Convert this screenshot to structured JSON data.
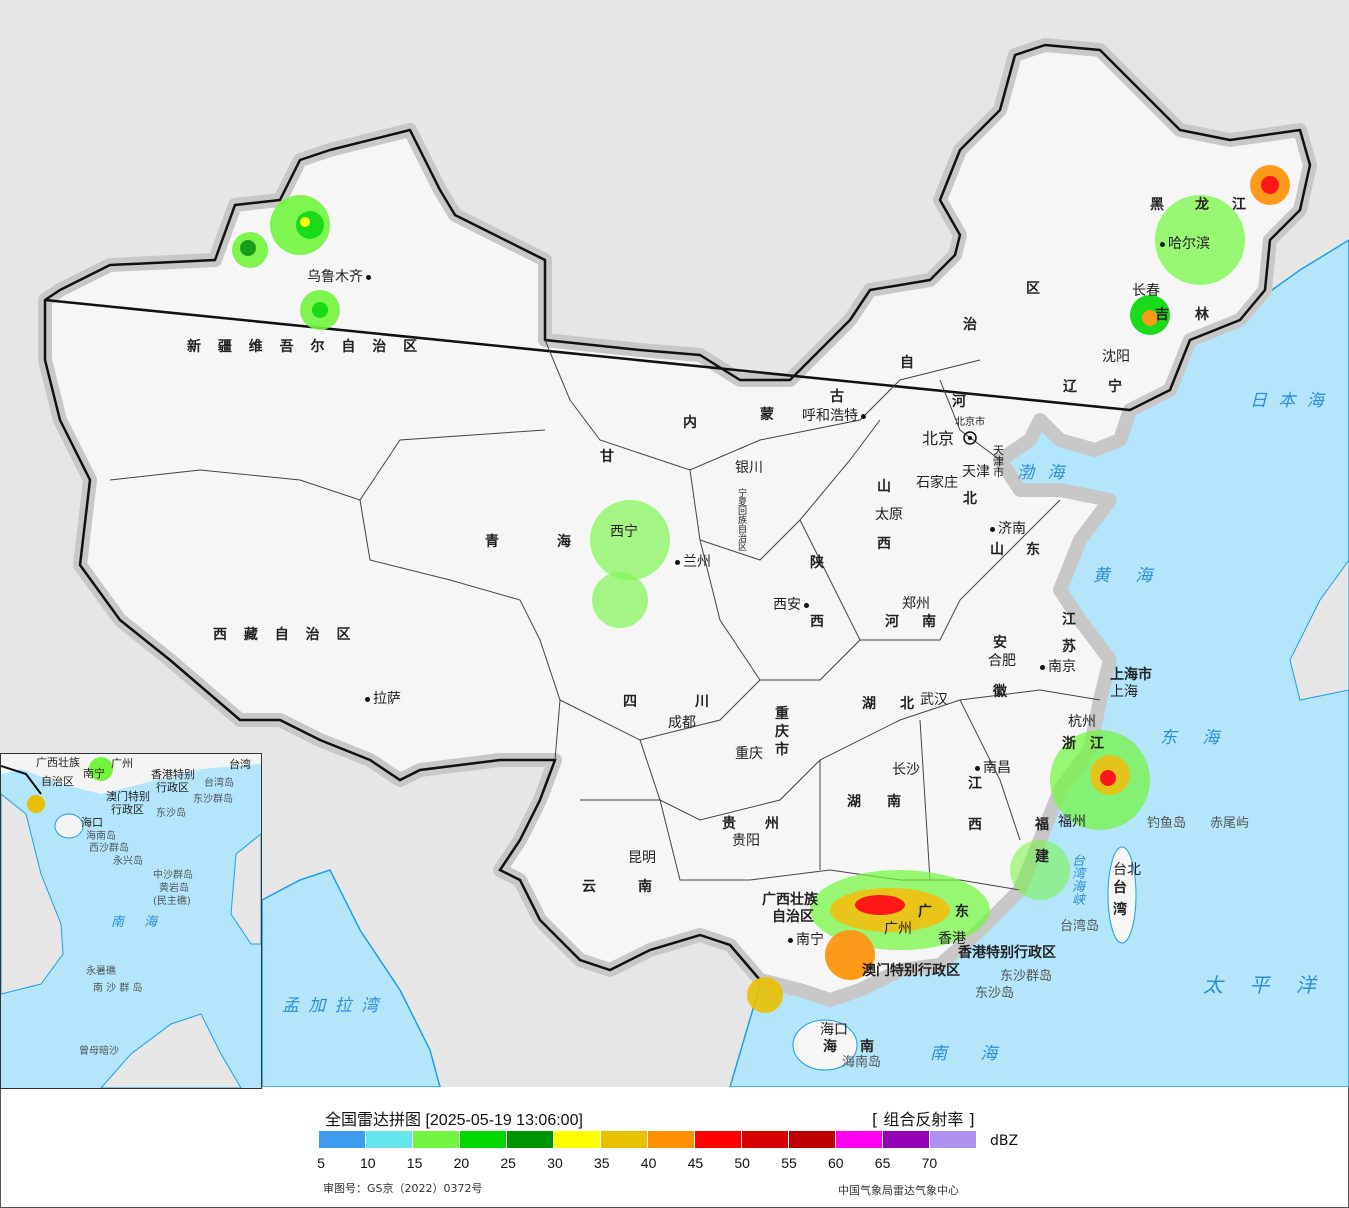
{
  "legend": {
    "title": "全国雷达拼图 [2025-05-19 13:06:00]",
    "product": "[ 组合反射率 ]",
    "unit": "dBZ",
    "ticks": [
      "5",
      "10",
      "15",
      "20",
      "25",
      "30",
      "35",
      "40",
      "45",
      "50",
      "55",
      "60",
      "65",
      "70"
    ],
    "colors": [
      "#3d9cf0",
      "#66e6ec",
      "#72f53e",
      "#00d800",
      "#009400",
      "#ffff00",
      "#e8c000",
      "#ff9000",
      "#ff0000",
      "#d60000",
      "#c00000",
      "#ff00f0",
      "#9600b4",
      "#ad90f0"
    ],
    "approval": "审图号：GS京（2022）0372号",
    "agency": "中国气象局雷达气象中心"
  },
  "map": {
    "colors": {
      "land_outside": "#e6e6e6",
      "china": "#f4f4f4",
      "sea": "#b3e5fb",
      "border": "#111111",
      "coast": "#1ea0e6"
    },
    "regions": [
      "新 疆 维 吾 尔 自 治 区",
      "西 藏 自 治 区",
      "青",
      "海",
      "甘",
      "内",
      "蒙",
      "古",
      "自",
      "治",
      "区",
      "黑",
      "龙",
      "江",
      "吉",
      "林",
      "辽",
      "宁",
      "河",
      "北",
      "山",
      "西",
      "陕",
      "西",
      "山",
      "东",
      "河",
      "南",
      "江",
      "苏",
      "安",
      "徽",
      "四",
      "川",
      "重",
      "庆",
      "市",
      "湖",
      "北",
      "湖",
      "南",
      "江",
      "西",
      "浙",
      "江",
      "福",
      "建",
      "贵",
      "州",
      "云",
      "南",
      "广西壮族",
      "自治区",
      "广",
      "东",
      "海",
      "南",
      "台",
      "湾",
      "上海市",
      "天津市",
      "北京市",
      "宁夏回族自治区"
    ],
    "cities": [
      "乌鲁木齐",
      "拉萨",
      "西宁",
      "兰州",
      "银川",
      "呼和浩特",
      "北京",
      "天津",
      "石家庄",
      "太原",
      "济南",
      "郑州",
      "西安",
      "成都",
      "重庆",
      "武汉",
      "合肥",
      "南京",
      "上海",
      "杭州",
      "南昌",
      "长沙",
      "贵阳",
      "昆明",
      "南宁",
      "广州",
      "香港",
      "福州",
      "台北",
      "海口",
      "哈尔滨",
      "长春",
      "沈阳"
    ],
    "special": [
      "香港特别行政区",
      "澳门特别行政区"
    ],
    "seas": [
      "渤 海",
      "黄 海",
      "东 海",
      "南 海",
      "太 平 洋",
      "日 本 海",
      "孟 加 拉 湾",
      "台 湾 海 峡"
    ],
    "islands": [
      "钓鱼岛",
      "赤尾屿",
      "台湾岛",
      "东沙群岛",
      "东沙岛",
      "海南岛"
    ]
  },
  "inset": {
    "labels": [
      "广西壮族",
      "自治区",
      "南宁",
      "广州",
      "香港特别",
      "行政区",
      "澳门特别",
      "行政区",
      "东沙群岛",
      "东沙岛",
      "海口",
      "海南岛",
      "西沙群岛",
      "永兴岛",
      "中沙群岛",
      "黄岩岛",
      "(民主礁)",
      "南 海",
      "永暑礁",
      "南 沙 群 岛",
      "曾母暗沙",
      "台湾",
      "台湾岛"
    ]
  }
}
